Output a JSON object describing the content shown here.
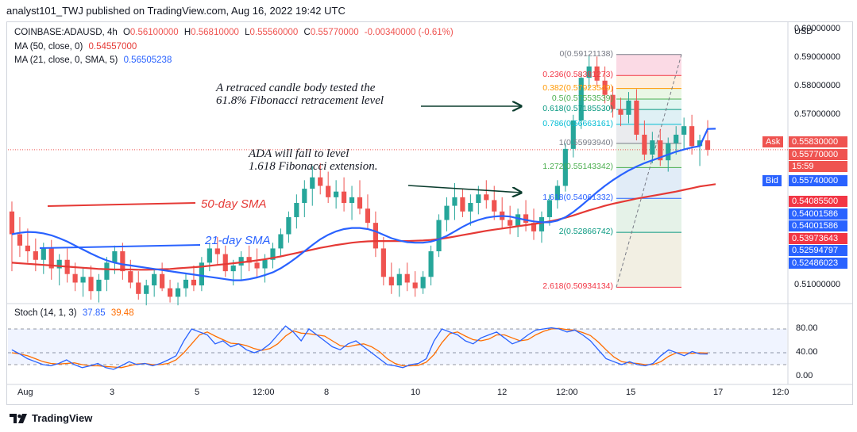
{
  "header": {
    "text": "analyst101_TWJ published on TradingView.com, Aug 16, 2022 19:42 UTC"
  },
  "legend": {
    "symbol": "COINBASE:ADAUSD, 4h",
    "ohlc": {
      "o_label": "O",
      "o": "0.56100000",
      "h_label": "H",
      "h": "0.56810000",
      "l_label": "L",
      "l": "0.55560000",
      "c_label": "C",
      "c": "0.55770000",
      "change": "-0.00340000 (-0.61%)"
    },
    "ma50_label": "MA (50, close, 0)",
    "ma50_value": "0.54557000",
    "ma21_label": "MA (21, close, 0, SMA, 5)",
    "ma21_value": "0.56505238",
    "stoch_label": "Stoch (14, 1, 3)",
    "stoch_k": "37.85",
    "stoch_d": "39.48"
  },
  "currency": "USD",
  "annotations": {
    "retraced_line1": "A retraced candle body tested the",
    "retraced_line2": "61.8% Fibonacci retracement level",
    "fall_line1": "ADA will fall to level",
    "fall_line2": "1.618 Fibonacci extension.",
    "sma50": "50-day SMA",
    "sma21": "21-day SMA"
  },
  "fib_levels": [
    {
      "label": "0(0.59121138)",
      "price": 0.59121138,
      "color": "#787b86"
    },
    {
      "label": "0.236(0.58381273)",
      "price": 0.58381273,
      "color": "#f23645"
    },
    {
      "label": "0.382(0.57923549)",
      "price": 0.57923549,
      "color": "#ff9800"
    },
    {
      "label": "0.5(0.57553539)",
      "price": 0.57553539,
      "color": "#4caf50"
    },
    {
      "label": "0.618(0.57185530)",
      "price": 0.5718553,
      "color": "#089981"
    },
    {
      "label": "0.786(0.56663161)",
      "price": 0.56663161,
      "color": "#00bcd4"
    },
    {
      "label": "1(0.55993940)",
      "price": 0.5599394,
      "color": "#787b86"
    },
    {
      "label": "1.272(0.55143342)",
      "price": 0.55143342,
      "color": "#4caf50"
    },
    {
      "label": "1.618(0.54061332)",
      "price": 0.54061332,
      "color": "#2962ff"
    },
    {
      "label": "2(0.52866742)",
      "price": 0.52866742,
      "color": "#089981"
    },
    {
      "label": "2.618(0.50934134)",
      "price": 0.50934134,
      "color": "#f23645"
    }
  ],
  "price_axis": {
    "ticks": [
      "0.60000000",
      "0.59000000",
      "0.58000000",
      "0.57000000",
      "0.51000000"
    ],
    "tick_values": [
      0.6,
      0.59,
      0.58,
      0.57,
      0.51
    ],
    "ask_label": "Ask",
    "ask_price": "0.55830000",
    "last_price": "0.55770000",
    "countdown": "15:59",
    "bid_label": "Bid",
    "bid_price": "0.55740000",
    "markers": [
      {
        "value": "0.54085500",
        "color": "#f23645"
      },
      {
        "value": "0.54001586",
        "color": "#2962ff"
      },
      {
        "value": "0.54001586",
        "color": "#2962ff"
      },
      {
        "value": "0.53973643",
        "color": "#f23645"
      },
      {
        "value": "0.52594797",
        "color": "#2962ff"
      },
      {
        "value": "0.52486023",
        "color": "#2962ff"
      }
    ]
  },
  "stoch_axis": {
    "ticks": [
      "80.00",
      "40.00",
      "0.00"
    ],
    "tick_values": [
      80,
      40,
      0
    ]
  },
  "time_axis": [
    "Aug",
    "3",
    "5",
    "12:00",
    "8",
    "10",
    "12",
    "12:00",
    "15",
    "17",
    "12:0"
  ],
  "footer": {
    "brand": "TradingView"
  },
  "colors": {
    "up": "#26a69a",
    "down": "#ef5350",
    "ma50": "#e53935",
    "ma21": "#2962ff",
    "stoch_k": "#2962ff",
    "stoch_d": "#ff6d00"
  },
  "chart_data": {
    "type": "candlestick",
    "title": "COINBASE:ADAUSD, 4h",
    "candles": [
      {
        "o": 0.536,
        "h": 0.5395,
        "l": 0.515,
        "c": 0.528
      },
      {
        "o": 0.528,
        "h": 0.534,
        "l": 0.52,
        "c": 0.524
      },
      {
        "o": 0.524,
        "h": 0.53,
        "l": 0.518,
        "c": 0.522
      },
      {
        "o": 0.522,
        "h": 0.5265,
        "l": 0.515,
        "c": 0.519
      },
      {
        "o": 0.519,
        "h": 0.525,
        "l": 0.514,
        "c": 0.523
      },
      {
        "o": 0.523,
        "h": 0.526,
        "l": 0.512,
        "c": 0.516
      },
      {
        "o": 0.516,
        "h": 0.521,
        "l": 0.51,
        "c": 0.519
      },
      {
        "o": 0.519,
        "h": 0.523,
        "l": 0.511,
        "c": 0.514
      },
      {
        "o": 0.514,
        "h": 0.518,
        "l": 0.508,
        "c": 0.511
      },
      {
        "o": 0.511,
        "h": 0.516,
        "l": 0.506,
        "c": 0.513
      },
      {
        "o": 0.513,
        "h": 0.517,
        "l": 0.505,
        "c": 0.508
      },
      {
        "o": 0.508,
        "h": 0.514,
        "l": 0.504,
        "c": 0.512
      },
      {
        "o": 0.512,
        "h": 0.52,
        "l": 0.508,
        "c": 0.518
      },
      {
        "o": 0.518,
        "h": 0.524,
        "l": 0.514,
        "c": 0.522
      },
      {
        "o": 0.522,
        "h": 0.525,
        "l": 0.512,
        "c": 0.515
      },
      {
        "o": 0.515,
        "h": 0.519,
        "l": 0.509,
        "c": 0.511
      },
      {
        "o": 0.511,
        "h": 0.515,
        "l": 0.505,
        "c": 0.507
      },
      {
        "o": 0.507,
        "h": 0.512,
        "l": 0.503,
        "c": 0.51
      },
      {
        "o": 0.51,
        "h": 0.516,
        "l": 0.506,
        "c": 0.514
      },
      {
        "o": 0.514,
        "h": 0.518,
        "l": 0.508,
        "c": 0.509
      },
      {
        "o": 0.509,
        "h": 0.512,
        "l": 0.504,
        "c": 0.506
      },
      {
        "o": 0.506,
        "h": 0.511,
        "l": 0.503,
        "c": 0.509
      },
      {
        "o": 0.509,
        "h": 0.514,
        "l": 0.506,
        "c": 0.512
      },
      {
        "o": 0.512,
        "h": 0.517,
        "l": 0.508,
        "c": 0.51
      },
      {
        "o": 0.51,
        "h": 0.52,
        "l": 0.508,
        "c": 0.518
      },
      {
        "o": 0.518,
        "h": 0.525,
        "l": 0.515,
        "c": 0.523
      },
      {
        "o": 0.523,
        "h": 0.527,
        "l": 0.517,
        "c": 0.521
      },
      {
        "o": 0.521,
        "h": 0.524,
        "l": 0.513,
        "c": 0.515
      },
      {
        "o": 0.515,
        "h": 0.519,
        "l": 0.51,
        "c": 0.517
      },
      {
        "o": 0.517,
        "h": 0.522,
        "l": 0.512,
        "c": 0.52
      },
      {
        "o": 0.52,
        "h": 0.524,
        "l": 0.515,
        "c": 0.518
      },
      {
        "o": 0.518,
        "h": 0.523,
        "l": 0.513,
        "c": 0.516
      },
      {
        "o": 0.516,
        "h": 0.521,
        "l": 0.511,
        "c": 0.519
      },
      {
        "o": 0.519,
        "h": 0.525,
        "l": 0.516,
        "c": 0.523
      },
      {
        "o": 0.523,
        "h": 0.53,
        "l": 0.52,
        "c": 0.528
      },
      {
        "o": 0.528,
        "h": 0.536,
        "l": 0.525,
        "c": 0.534
      },
      {
        "o": 0.534,
        "h": 0.542,
        "l": 0.53,
        "c": 0.539
      },
      {
        "o": 0.539,
        "h": 0.547,
        "l": 0.534,
        "c": 0.544
      },
      {
        "o": 0.544,
        "h": 0.552,
        "l": 0.538,
        "c": 0.548
      },
      {
        "o": 0.548,
        "h": 0.553,
        "l": 0.542,
        "c": 0.545
      },
      {
        "o": 0.545,
        "h": 0.55,
        "l": 0.539,
        "c": 0.541
      },
      {
        "o": 0.541,
        "h": 0.547,
        "l": 0.537,
        "c": 0.543
      },
      {
        "o": 0.543,
        "h": 0.548,
        "l": 0.536,
        "c": 0.539
      },
      {
        "o": 0.539,
        "h": 0.545,
        "l": 0.533,
        "c": 0.541
      },
      {
        "o": 0.541,
        "h": 0.547,
        "l": 0.535,
        "c": 0.537
      },
      {
        "o": 0.537,
        "h": 0.542,
        "l": 0.53,
        "c": 0.532
      },
      {
        "o": 0.532,
        "h": 0.536,
        "l": 0.52,
        "c": 0.523
      },
      {
        "o": 0.523,
        "h": 0.527,
        "l": 0.51,
        "c": 0.513
      },
      {
        "o": 0.513,
        "h": 0.518,
        "l": 0.507,
        "c": 0.51
      },
      {
        "o": 0.51,
        "h": 0.516,
        "l": 0.506,
        "c": 0.514
      },
      {
        "o": 0.514,
        "h": 0.518,
        "l": 0.508,
        "c": 0.511
      },
      {
        "o": 0.511,
        "h": 0.515,
        "l": 0.506,
        "c": 0.509
      },
      {
        "o": 0.509,
        "h": 0.515,
        "l": 0.507,
        "c": 0.513
      },
      {
        "o": 0.513,
        "h": 0.524,
        "l": 0.51,
        "c": 0.522
      },
      {
        "o": 0.522,
        "h": 0.535,
        "l": 0.52,
        "c": 0.533
      },
      {
        "o": 0.533,
        "h": 0.541,
        "l": 0.529,
        "c": 0.538
      },
      {
        "o": 0.538,
        "h": 0.546,
        "l": 0.533,
        "c": 0.541
      },
      {
        "o": 0.541,
        "h": 0.544,
        "l": 0.534,
        "c": 0.536
      },
      {
        "o": 0.536,
        "h": 0.542,
        "l": 0.531,
        "c": 0.539
      },
      {
        "o": 0.539,
        "h": 0.545,
        "l": 0.535,
        "c": 0.542
      },
      {
        "o": 0.542,
        "h": 0.547,
        "l": 0.537,
        "c": 0.54
      },
      {
        "o": 0.54,
        "h": 0.545,
        "l": 0.533,
        "c": 0.536
      },
      {
        "o": 0.536,
        "h": 0.541,
        "l": 0.53,
        "c": 0.533
      },
      {
        "o": 0.533,
        "h": 0.538,
        "l": 0.528,
        "c": 0.531
      },
      {
        "o": 0.531,
        "h": 0.537,
        "l": 0.527,
        "c": 0.535
      },
      {
        "o": 0.535,
        "h": 0.54,
        "l": 0.529,
        "c": 0.532
      },
      {
        "o": 0.532,
        "h": 0.537,
        "l": 0.526,
        "c": 0.529
      },
      {
        "o": 0.529,
        "h": 0.536,
        "l": 0.525,
        "c": 0.534
      },
      {
        "o": 0.534,
        "h": 0.542,
        "l": 0.531,
        "c": 0.54
      },
      {
        "o": 0.54,
        "h": 0.547,
        "l": 0.537,
        "c": 0.545
      },
      {
        "o": 0.545,
        "h": 0.56,
        "l": 0.543,
        "c": 0.558
      },
      {
        "o": 0.558,
        "h": 0.57,
        "l": 0.555,
        "c": 0.568
      },
      {
        "o": 0.568,
        "h": 0.585,
        "l": 0.565,
        "c": 0.583
      },
      {
        "o": 0.583,
        "h": 0.5912,
        "l": 0.579,
        "c": 0.587
      },
      {
        "o": 0.587,
        "h": 0.5905,
        "l": 0.58,
        "c": 0.582
      },
      {
        "o": 0.582,
        "h": 0.587,
        "l": 0.574,
        "c": 0.577
      },
      {
        "o": 0.577,
        "h": 0.58,
        "l": 0.569,
        "c": 0.572
      },
      {
        "o": 0.572,
        "h": 0.576,
        "l": 0.566,
        "c": 0.57
      },
      {
        "o": 0.57,
        "h": 0.578,
        "l": 0.567,
        "c": 0.575
      },
      {
        "o": 0.575,
        "h": 0.579,
        "l": 0.561,
        "c": 0.563
      },
      {
        "o": 0.563,
        "h": 0.568,
        "l": 0.554,
        "c": 0.556
      },
      {
        "o": 0.556,
        "h": 0.564,
        "l": 0.553,
        "c": 0.561
      },
      {
        "o": 0.561,
        "h": 0.565,
        "l": 0.552,
        "c": 0.554
      },
      {
        "o": 0.554,
        "h": 0.562,
        "l": 0.55,
        "c": 0.56
      },
      {
        "o": 0.56,
        "h": 0.566,
        "l": 0.556,
        "c": 0.563
      },
      {
        "o": 0.563,
        "h": 0.569,
        "l": 0.558,
        "c": 0.566
      },
      {
        "o": 0.566,
        "h": 0.57,
        "l": 0.556,
        "c": 0.559
      },
      {
        "o": 0.559,
        "h": 0.563,
        "l": 0.552,
        "c": 0.561
      },
      {
        "o": 0.561,
        "h": 0.5681,
        "l": 0.5556,
        "c": 0.5577
      }
    ],
    "ma50": [
      0.518,
      0.5178,
      0.5176,
      0.5174,
      0.5172,
      0.517,
      0.5168,
      0.5166,
      0.5164,
      0.5162,
      0.516,
      0.5158,
      0.5157,
      0.5156,
      0.5156,
      0.5156,
      0.5155,
      0.5155,
      0.5156,
      0.5157,
      0.5158,
      0.516,
      0.5162,
      0.5164,
      0.5166,
      0.5169,
      0.5172,
      0.5175,
      0.5178,
      0.5181,
      0.5184,
      0.5188,
      0.5192,
      0.5197,
      0.5202,
      0.5208,
      0.5214,
      0.522,
      0.5226,
      0.5232,
      0.5237,
      0.5242,
      0.5246,
      0.525,
      0.5253,
      0.5255,
      0.5256,
      0.5256,
      0.5256,
      0.5256,
      0.5256,
      0.5257,
      0.5258,
      0.526,
      0.5263,
      0.5267,
      0.5272,
      0.5277,
      0.5282,
      0.5287,
      0.5292,
      0.5296,
      0.53,
      0.5304,
      0.5308,
      0.5312,
      0.5316,
      0.532,
      0.5325,
      0.5331,
      0.5338,
      0.5346,
      0.5355,
      0.5364,
      0.5372,
      0.538,
      0.5387,
      0.5393,
      0.5399,
      0.5405,
      0.541,
      0.5415,
      0.542,
      0.5425,
      0.543,
      0.5436,
      0.5442,
      0.5448,
      0.5452,
      0.5456
    ],
    "ma21": [
      0.528,
      0.5285,
      0.5288,
      0.5287,
      0.5283,
      0.5276,
      0.5266,
      0.5254,
      0.524,
      0.5226,
      0.5212,
      0.5199,
      0.5188,
      0.518,
      0.5174,
      0.517,
      0.5166,
      0.5162,
      0.5158,
      0.5154,
      0.515,
      0.5146,
      0.5142,
      0.5138,
      0.5134,
      0.513,
      0.5126,
      0.5122,
      0.5118,
      0.5118,
      0.5122,
      0.5128,
      0.5136,
      0.5146,
      0.516,
      0.5178,
      0.5198,
      0.522,
      0.5242,
      0.5262,
      0.5278,
      0.529,
      0.5298,
      0.5302,
      0.5302,
      0.5298,
      0.529,
      0.5278,
      0.5266,
      0.5258,
      0.5252,
      0.525,
      0.525,
      0.5254,
      0.5262,
      0.5274,
      0.529,
      0.5306,
      0.532,
      0.533,
      0.5338,
      0.5342,
      0.5344,
      0.5342,
      0.5336,
      0.533,
      0.5325,
      0.5322,
      0.5322,
      0.5328,
      0.534,
      0.5358,
      0.538,
      0.5404,
      0.5428,
      0.545,
      0.547,
      0.5488,
      0.5504,
      0.5518,
      0.553,
      0.554,
      0.555,
      0.556,
      0.557,
      0.5578,
      0.5585,
      0.559,
      0.565,
      0.5651
    ],
    "stoch_k": [
      45,
      38,
      30,
      25,
      20,
      18,
      22,
      28,
      20,
      15,
      18,
      22,
      15,
      12,
      18,
      25,
      20,
      22,
      18,
      22,
      28,
      35,
      60,
      80,
      75,
      70,
      55,
      60,
      50,
      55,
      45,
      40,
      45,
      55,
      70,
      85,
      75,
      60,
      80,
      70,
      60,
      50,
      45,
      55,
      60,
      50,
      40,
      30,
      20,
      18,
      15,
      20,
      22,
      30,
      60,
      80,
      75,
      70,
      60,
      55,
      65,
      70,
      75,
      65,
      55,
      60,
      70,
      78,
      80,
      82,
      80,
      75,
      78,
      70,
      60,
      45,
      30,
      25,
      20,
      25,
      20,
      18,
      22,
      35,
      45,
      40,
      35,
      42,
      38,
      37.85
    ],
    "stoch_d": [
      40,
      38,
      35,
      30,
      25,
      22,
      21,
      22,
      23,
      20,
      18,
      18,
      17,
      16,
      15,
      18,
      21,
      22,
      20,
      20,
      22,
      28,
      40,
      55,
      70,
      75,
      68,
      62,
      56,
      55,
      52,
      47,
      44,
      47,
      55,
      68,
      77,
      73,
      72,
      70,
      68,
      60,
      52,
      50,
      53,
      55,
      50,
      42,
      30,
      22,
      18,
      18,
      19,
      24,
      37,
      57,
      72,
      75,
      68,
      62,
      60,
      63,
      70,
      70,
      65,
      60,
      62,
      70,
      76,
      80,
      81,
      79,
      78,
      74,
      69,
      58,
      45,
      33,
      25,
      23,
      22,
      20,
      20,
      25,
      34,
      40,
      40,
      39,
      40,
      39.48
    ]
  }
}
